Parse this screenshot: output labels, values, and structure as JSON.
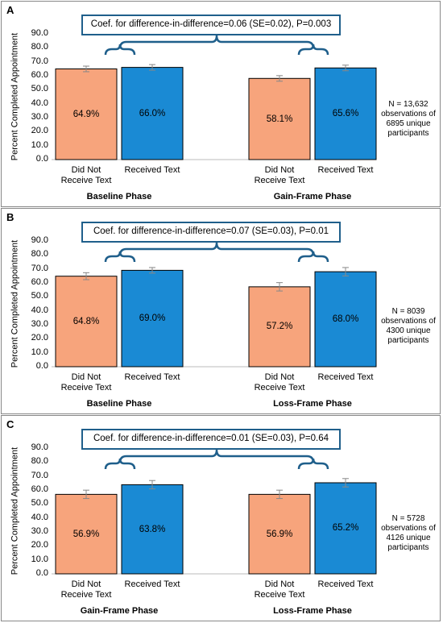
{
  "chart_data": [
    {
      "type": "bar",
      "panel": "A",
      "annotation": "Coef. for difference-in-difference=0.06 (SE=0.02), P=0.003",
      "ylabel": "Percent Completed Appointment",
      "categories": [
        "Baseline Phase",
        "Gain-Frame Phase"
      ],
      "series": [
        {
          "name": "Did Not Receive Text",
          "color": "#f7a47c",
          "values": [
            64.9,
            58.1
          ],
          "value_labels": [
            "64.9%",
            "58.1%"
          ],
          "errors": [
            2,
            2
          ]
        },
        {
          "name": "Received Text",
          "color": "#1a8ad4",
          "values": [
            66.0,
            65.6
          ],
          "value_labels": [
            "66.0%",
            "65.6%"
          ],
          "errors": [
            2,
            2
          ]
        }
      ],
      "ylim": [
        0,
        90
      ],
      "yticks": [
        {
          "value": 0,
          "label": "0.0"
        },
        {
          "value": 10,
          "label": "10.0"
        },
        {
          "value": 20,
          "label": "20.0"
        },
        {
          "value": 30,
          "label": "30.0"
        },
        {
          "value": 40,
          "label": "40.0"
        },
        {
          "value": 50,
          "label": "50.0"
        },
        {
          "value": 60,
          "label": "60.0"
        },
        {
          "value": 70,
          "label": "70.0"
        },
        {
          "value": 80,
          "label": "80.0"
        },
        {
          "value": 90,
          "label": "90.0"
        }
      ],
      "note": [
        "N = 13,632",
        "observations of",
        "6895 unique",
        "participants"
      ]
    },
    {
      "type": "bar",
      "panel": "B",
      "annotation": "Coef. for difference-in-difference=0.07 (SE=0.03), P=0.01",
      "ylabel": "Percent Completed Appointment",
      "categories": [
        "Baseline Phase",
        "Loss-Frame Phase"
      ],
      "series": [
        {
          "name": "Did Not Receive Text",
          "color": "#f7a47c",
          "values": [
            64.8,
            57.2
          ],
          "value_labels": [
            "64.8%",
            "57.2%"
          ],
          "errors": [
            2.5,
            3
          ]
        },
        {
          "name": "Received Text",
          "color": "#1a8ad4",
          "values": [
            69.0,
            68.0
          ],
          "value_labels": [
            "69.0%",
            "68.0%"
          ],
          "errors": [
            2,
            3
          ]
        }
      ],
      "ylim": [
        0,
        90
      ],
      "yticks": [
        {
          "value": 0,
          "label": "0.0"
        },
        {
          "value": 10,
          "label": "10.0"
        },
        {
          "value": 20,
          "label": "20.0"
        },
        {
          "value": 30,
          "label": "30.0"
        },
        {
          "value": 40,
          "label": "40.0"
        },
        {
          "value": 50,
          "label": "50.0"
        },
        {
          "value": 60,
          "label": "60.0"
        },
        {
          "value": 70,
          "label": "70.0"
        },
        {
          "value": 80,
          "label": "80.0"
        },
        {
          "value": 90,
          "label": "90.0"
        }
      ],
      "note": [
        "N = 8039",
        "observations of",
        "4300 unique",
        "participants"
      ]
    },
    {
      "type": "bar",
      "panel": "C",
      "annotation": "Coef. for difference-in-difference=0.01 (SE=0.03), P=0.64",
      "ylabel": "Percent Completed Appointment",
      "categories": [
        "Gain-Frame Phase",
        "Loss-Frame Phase"
      ],
      "series": [
        {
          "name": "Did Not Receive Text",
          "color": "#f7a47c",
          "values": [
            56.9,
            56.9
          ],
          "value_labels": [
            "56.9%",
            "56.9%"
          ],
          "errors": [
            3,
            3
          ]
        },
        {
          "name": "Received Text",
          "color": "#1a8ad4",
          "values": [
            63.8,
            65.2
          ],
          "value_labels": [
            "63.8%",
            "65.2%"
          ],
          "errors": [
            3,
            3
          ]
        }
      ],
      "ylim": [
        0,
        90
      ],
      "yticks": [
        {
          "value": 0,
          "label": "0.0"
        },
        {
          "value": 10,
          "label": "10.0"
        },
        {
          "value": 20,
          "label": "20.0"
        },
        {
          "value": 30,
          "label": "30.0"
        },
        {
          "value": 40,
          "label": "40.0"
        },
        {
          "value": 50,
          "label": "50.0"
        },
        {
          "value": 60,
          "label": "60.0"
        },
        {
          "value": 70,
          "label": "70.0"
        },
        {
          "value": 80,
          "label": "80.0"
        },
        {
          "value": 90,
          "label": "90.0"
        }
      ],
      "note": [
        "N = 5728",
        "observations of",
        "4126 unique",
        "participants"
      ]
    }
  ]
}
